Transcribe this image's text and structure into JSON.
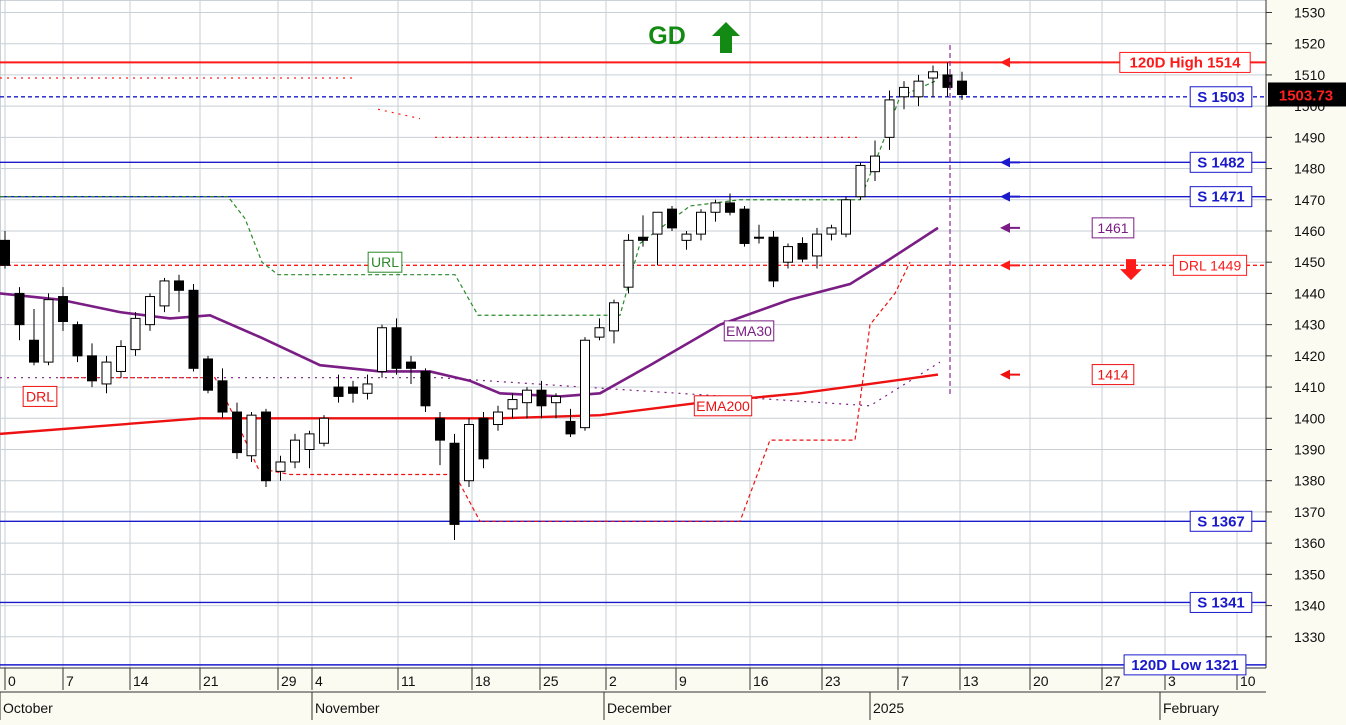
{
  "chart_data": {
    "type": "candlestick",
    "colors": {
      "background": "#fbfbf2",
      "grid": "#c8cfd6",
      "resistance": "#ff1a1a",
      "support": "#1a1acc",
      "ema30": "#7a1d84",
      "ema200": "#ee1111",
      "url": "#2a8a2a",
      "gd": "#138a13"
    },
    "y_axis": {
      "min": 1320,
      "max": 1534,
      "ticks": [
        1330,
        1340,
        1350,
        1360,
        1370,
        1380,
        1390,
        1400,
        1410,
        1420,
        1430,
        1440,
        1450,
        1460,
        1470,
        1480,
        1490,
        1500,
        1510,
        1520,
        1530
      ]
    },
    "x_axis": {
      "tick_labels": [
        "0",
        "7",
        "14",
        "21",
        "29",
        "4",
        "11",
        "18",
        "25",
        "2",
        "9",
        "16",
        "23",
        "7",
        "13",
        "20",
        "27",
        "3",
        "10"
      ],
      "month_labels": [
        "October",
        "November",
        "December",
        "2025",
        "February"
      ]
    },
    "signal": {
      "label": "GD",
      "direction": "up"
    },
    "last_price": "1503.73",
    "levels": [
      {
        "label": "120D High 1514",
        "value": 1514,
        "style": "solid",
        "color": "resistance",
        "arrow": true
      },
      {
        "label": "S 1503",
        "value": 1503,
        "style": "dashed",
        "color": "support",
        "arrow": false
      },
      {
        "label": "S 1482",
        "value": 1482,
        "style": "solid",
        "color": "support",
        "arrow": true
      },
      {
        "label": "S 1471",
        "value": 1471,
        "style": "solid",
        "color": "support",
        "arrow": true
      },
      {
        "label": "DRL 1449",
        "value": 1449,
        "style": "dashed",
        "color": "resistance",
        "arrow": true
      },
      {
        "label": "S 1367",
        "value": 1367,
        "style": "solid",
        "color": "support",
        "arrow": false
      },
      {
        "label": "S 1341",
        "value": 1341,
        "style": "solid",
        "color": "support",
        "arrow": false
      },
      {
        "label": "120D Low 1321",
        "value": 1321,
        "style": "solid",
        "color": "support",
        "arrow": false
      }
    ],
    "markers": [
      {
        "label": "1461",
        "value": 1461,
        "color": "ema30"
      },
      {
        "label": "1414",
        "value": 1414,
        "color": "ema200"
      }
    ],
    "line_labels": {
      "ema30": "EMA30",
      "ema200": "EMA200",
      "url": "URL",
      "drl": "DRL"
    },
    "candles": [
      {
        "o": 1457,
        "h": 1460,
        "l": 1448,
        "c": 1449
      },
      {
        "o": 1440,
        "h": 1442,
        "l": 1425,
        "c": 1430
      },
      {
        "o": 1425,
        "h": 1435,
        "l": 1417,
        "c": 1418
      },
      {
        "o": 1418,
        "h": 1440,
        "l": 1417,
        "c": 1438
      },
      {
        "o": 1439,
        "h": 1442,
        "l": 1428,
        "c": 1431
      },
      {
        "o": 1430,
        "h": 1431,
        "l": 1418,
        "c": 1420
      },
      {
        "o": 1420,
        "h": 1424,
        "l": 1410,
        "c": 1412
      },
      {
        "o": 1411,
        "h": 1420,
        "l": 1408,
        "c": 1418
      },
      {
        "o": 1415,
        "h": 1425,
        "l": 1413,
        "c": 1423
      },
      {
        "o": 1422,
        "h": 1434,
        "l": 1420,
        "c": 1432
      },
      {
        "o": 1430,
        "h": 1440,
        "l": 1428,
        "c": 1439
      },
      {
        "o": 1436,
        "h": 1445,
        "l": 1434,
        "c": 1444
      },
      {
        "o": 1444,
        "h": 1446,
        "l": 1434,
        "c": 1441
      },
      {
        "o": 1441,
        "h": 1443,
        "l": 1415,
        "c": 1416
      },
      {
        "o": 1419,
        "h": 1420,
        "l": 1408,
        "c": 1409
      },
      {
        "o": 1412,
        "h": 1416,
        "l": 1400,
        "c": 1402
      },
      {
        "o": 1402,
        "h": 1405,
        "l": 1387,
        "c": 1389
      },
      {
        "o": 1388,
        "h": 1402,
        "l": 1386,
        "c": 1401
      },
      {
        "o": 1402,
        "h": 1403,
        "l": 1378,
        "c": 1380
      },
      {
        "o": 1383,
        "h": 1388,
        "l": 1380,
        "c": 1386
      },
      {
        "o": 1386,
        "h": 1395,
        "l": 1384,
        "c": 1393
      },
      {
        "o": 1390,
        "h": 1396,
        "l": 1384,
        "c": 1395
      },
      {
        "o": 1392,
        "h": 1401,
        "l": 1391,
        "c": 1400
      },
      {
        "o": 1410,
        "h": 1414,
        "l": 1405,
        "c": 1407
      },
      {
        "o": 1410,
        "h": 1412,
        "l": 1405,
        "c": 1408
      },
      {
        "o": 1408,
        "h": 1414,
        "l": 1406,
        "c": 1411
      },
      {
        "o": 1415,
        "h": 1430,
        "l": 1413,
        "c": 1429
      },
      {
        "o": 1429,
        "h": 1432,
        "l": 1414,
        "c": 1416
      },
      {
        "o": 1418,
        "h": 1420,
        "l": 1411,
        "c": 1416
      },
      {
        "o": 1415,
        "h": 1416,
        "l": 1402,
        "c": 1404
      },
      {
        "o": 1400,
        "h": 1402,
        "l": 1385,
        "c": 1393
      },
      {
        "o": 1392,
        "h": 1395,
        "l": 1361,
        "c": 1366
      },
      {
        "o": 1380,
        "h": 1400,
        "l": 1378,
        "c": 1398
      },
      {
        "o": 1400,
        "h": 1402,
        "l": 1384,
        "c": 1387
      },
      {
        "o": 1398,
        "h": 1404,
        "l": 1396,
        "c": 1402
      },
      {
        "o": 1403,
        "h": 1408,
        "l": 1400,
        "c": 1406
      },
      {
        "o": 1405,
        "h": 1410,
        "l": 1400,
        "c": 1409
      },
      {
        "o": 1409,
        "h": 1412,
        "l": 1400,
        "c": 1404
      },
      {
        "o": 1405,
        "h": 1408,
        "l": 1400,
        "c": 1407
      },
      {
        "o": 1399,
        "h": 1403,
        "l": 1394,
        "c": 1395
      },
      {
        "o": 1397,
        "h": 1426,
        "l": 1396,
        "c": 1425
      },
      {
        "o": 1426,
        "h": 1432,
        "l": 1425,
        "c": 1429
      },
      {
        "o": 1428,
        "h": 1438,
        "l": 1424,
        "c": 1437
      },
      {
        "o": 1442,
        "h": 1459,
        "l": 1440,
        "c": 1457
      },
      {
        "o": 1458,
        "h": 1465,
        "l": 1455,
        "c": 1457
      },
      {
        "o": 1459,
        "h": 1466,
        "l": 1449,
        "c": 1466
      },
      {
        "o": 1467,
        "h": 1468,
        "l": 1460,
        "c": 1461
      },
      {
        "o": 1457,
        "h": 1460,
        "l": 1454,
        "c": 1459
      },
      {
        "o": 1459,
        "h": 1467,
        "l": 1457,
        "c": 1466
      },
      {
        "o": 1466,
        "h": 1470,
        "l": 1463,
        "c": 1469
      },
      {
        "o": 1469,
        "h": 1472,
        "l": 1465,
        "c": 1466
      },
      {
        "o": 1467,
        "h": 1468,
        "l": 1455,
        "c": 1456
      },
      {
        "o": 1458,
        "h": 1462,
        "l": 1456,
        "c": 1458
      },
      {
        "o": 1458,
        "h": 1460,
        "l": 1442,
        "c": 1444
      },
      {
        "o": 1450,
        "h": 1456,
        "l": 1448,
        "c": 1455
      },
      {
        "o": 1456,
        "h": 1458,
        "l": 1450,
        "c": 1451
      },
      {
        "o": 1452,
        "h": 1461,
        "l": 1448,
        "c": 1459
      },
      {
        "o": 1459,
        "h": 1462,
        "l": 1457,
        "c": 1461
      },
      {
        "o": 1459,
        "h": 1471,
        "l": 1458,
        "c": 1470
      },
      {
        "o": 1471,
        "h": 1482,
        "l": 1470,
        "c": 1481
      },
      {
        "o": 1479,
        "h": 1489,
        "l": 1476,
        "c": 1484
      },
      {
        "o": 1490,
        "h": 1505,
        "l": 1486,
        "c": 1502
      },
      {
        "o": 1503,
        "h": 1508,
        "l": 1499,
        "c": 1506
      },
      {
        "o": 1503,
        "h": 1510,
        "l": 1500,
        "c": 1508
      },
      {
        "o": 1509,
        "h": 1513,
        "l": 1503,
        "c": 1511
      },
      {
        "o": 1510,
        "h": 1514,
        "l": 1503,
        "c": 1506
      },
      {
        "o": 1508,
        "h": 1511,
        "l": 1502,
        "c": 1503.73
      }
    ]
  }
}
